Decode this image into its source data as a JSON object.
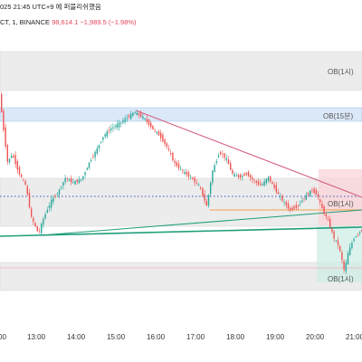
{
  "header": {
    "datetime_text": "025 21:45 UTC+9 에 퍼블리쉬했음",
    "symbol_text": "CT, 1, BINANCE",
    "last_price": "98,614.1",
    "change": "−1,989.5 (−1.98%)"
  },
  "colors": {
    "bullish": "#26a69a",
    "bearish": "#ef5350",
    "ob_gray": "#ececec",
    "ob_blue": "#dbe8f8",
    "trend_pink": "#d25b79",
    "support_teal": "#1f9e7a",
    "level_orange": "#f0a24b",
    "dotted_blue": "#3b4fc4"
  },
  "zones": [
    {
      "label": "OB(1시)"
    },
    {
      "label": "OB(15분)"
    },
    {
      "label": "OB(1시)"
    },
    {
      "label": "OB(1시)"
    }
  ],
  "chart_data": {
    "type": "candlestick",
    "timeframe": "1",
    "x_ticks": [
      "00",
      "13:00",
      "14:00",
      "15:00",
      "16:00",
      "17:00",
      "18:00",
      "19:00",
      "20:00",
      "21:00"
    ]
  }
}
